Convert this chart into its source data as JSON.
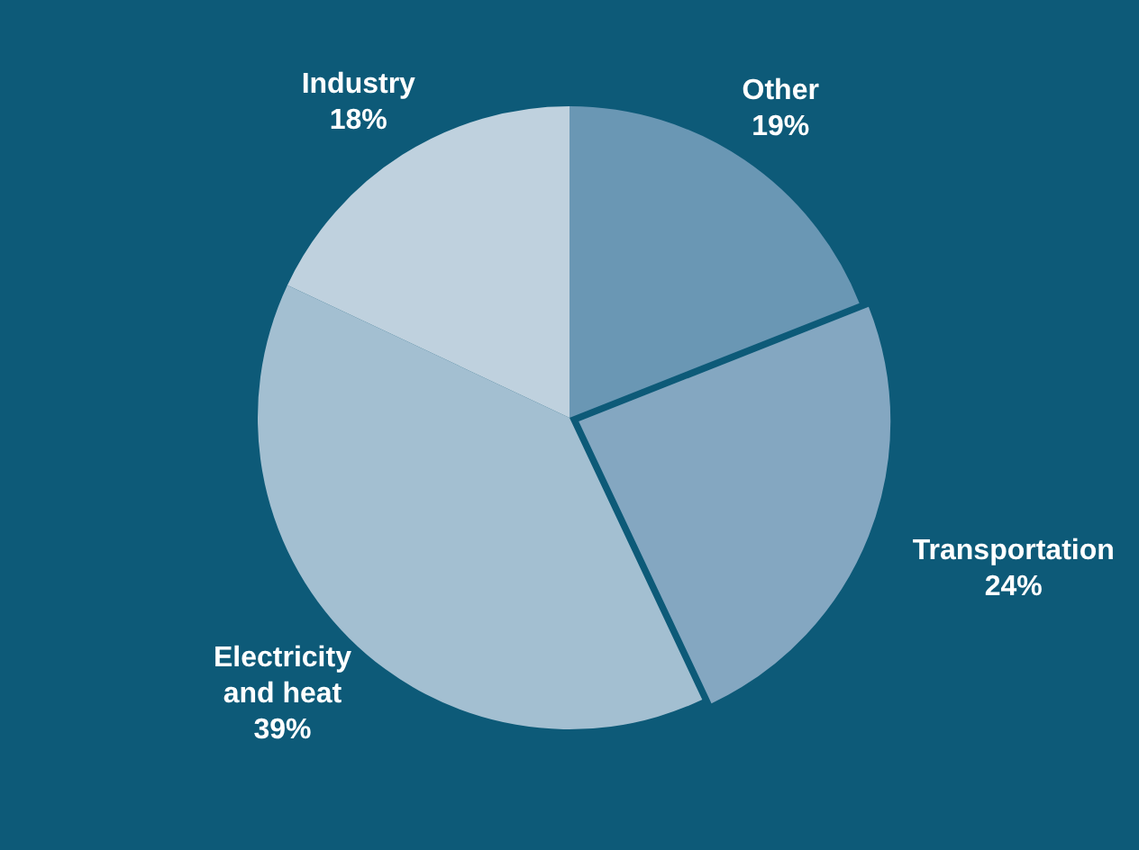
{
  "chart_data": {
    "type": "pie",
    "categories": [
      "Other",
      "Transportation",
      "Electricity\nand heat",
      "Industry"
    ],
    "values": [
      19,
      24,
      39,
      18
    ],
    "colors": [
      "#6a97b4",
      "#84a7c1",
      "#a3bfd1",
      "#bfd1de"
    ],
    "value_labels": [
      "19%",
      "24%",
      "39%",
      "18%"
    ],
    "legend": false
  }
}
